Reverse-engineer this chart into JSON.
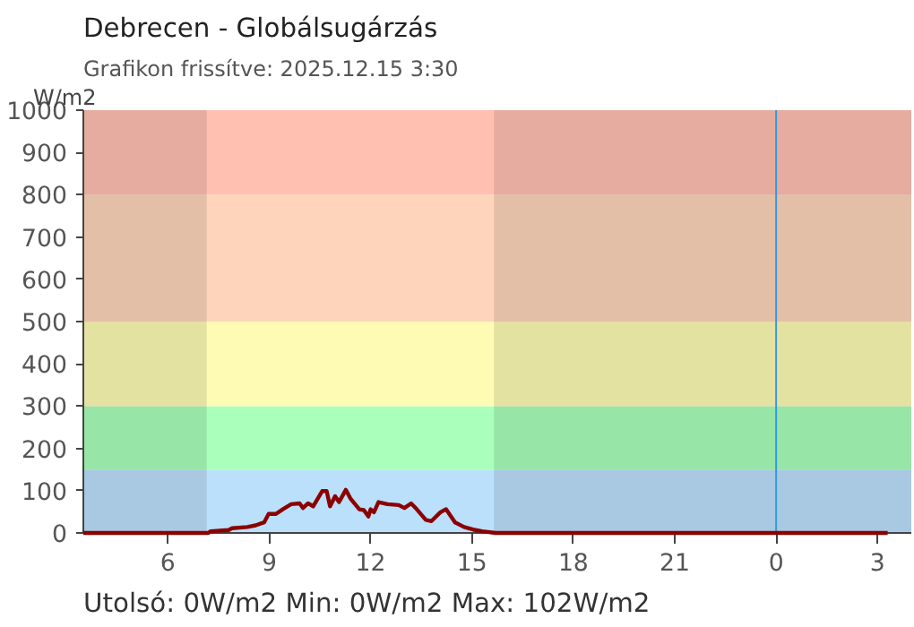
{
  "chart_data": {
    "type": "line",
    "title": "Debrecen - Globálsugárzás",
    "subtitle": "Grafikon frissítve: 2025.12.15 3:30",
    "ylabel": "W/m2",
    "annotations": [
      "Utolsó: 0W/m2  Min: 0W/m2  Max: 102W/m2"
    ],
    "xlim": [
      "2025-12-14T03:30",
      "2025-12-15T04:00"
    ],
    "ylim": [
      0,
      1000
    ],
    "xticks": [
      {
        "value": "2025-12-14T06:00",
        "label": "6"
      },
      {
        "value": "2025-12-14T09:00",
        "label": "9"
      },
      {
        "value": "2025-12-14T12:00",
        "label": "12"
      },
      {
        "value": "2025-12-14T15:00",
        "label": "15"
      },
      {
        "value": "2025-12-14T18:00",
        "label": "18"
      },
      {
        "value": "2025-12-14T21:00",
        "label": "21"
      },
      {
        "value": "2025-12-15T00:00",
        "label": "0"
      },
      {
        "value": "2025-12-15T03:00",
        "label": "3"
      }
    ],
    "yticks": [
      0,
      100,
      200,
      300,
      400,
      500,
      600,
      700,
      800,
      900,
      1000
    ],
    "grid": false,
    "series": [
      {
        "color": "#8b0000",
        "x": [
          "2025-12-14T03:30",
          "2025-12-14T07:12",
          "2025-12-14T07:16",
          "2025-12-14T07:48",
          "2025-12-14T07:54",
          "2025-12-14T08:21",
          "2025-12-14T08:36",
          "2025-12-14T08:51",
          "2025-12-14T08:59",
          "2025-12-14T09:12",
          "2025-12-14T09:24",
          "2025-12-14T09:39",
          "2025-12-14T09:54",
          "2025-12-14T10:00",
          "2025-12-14T10:09",
          "2025-12-14T10:18",
          "2025-12-14T10:34",
          "2025-12-14T10:42",
          "2025-12-14T10:48",
          "2025-12-14T10:57",
          "2025-12-14T11:04",
          "2025-12-14T11:09",
          "2025-12-14T11:16",
          "2025-12-14T11:24",
          "2025-12-14T11:40",
          "2025-12-14T11:48",
          "2025-12-14T11:56",
          "2025-12-14T12:00",
          "2025-12-14T12:06",
          "2025-12-14T12:14",
          "2025-12-14T12:30",
          "2025-12-14T12:50",
          "2025-12-14T13:00",
          "2025-12-14T13:12",
          "2025-12-14T13:22",
          "2025-12-14T13:38",
          "2025-12-14T13:48",
          "2025-12-14T14:04",
          "2025-12-14T14:14",
          "2025-12-14T14:30",
          "2025-12-14T14:46",
          "2025-12-14T15:02",
          "2025-12-14T15:18",
          "2025-12-14T15:42",
          "2025-12-15T03:18"
        ],
        "values": [
          0,
          0,
          4,
          7,
          11,
          14,
          18,
          25,
          45,
          45,
          56,
          68,
          70,
          59,
          70,
          63,
          99,
          99,
          63,
          87,
          73,
          85,
          102,
          82,
          56,
          54,
          39,
          56,
          49,
          73,
          68,
          66,
          59,
          70,
          56,
          31,
          28,
          49,
          56,
          25,
          14,
          8,
          4,
          0,
          0
        ]
      }
    ],
    "bands": [
      {
        "axis": "y",
        "from": 0,
        "to": 150,
        "color": "#bbe0fb"
      },
      {
        "axis": "y",
        "from": 150,
        "to": 300,
        "color": "#aaffbb"
      },
      {
        "axis": "y",
        "from": 300,
        "to": 500,
        "color": "#fefcb4"
      },
      {
        "axis": "y",
        "from": 500,
        "to": 800,
        "color": "#fed5bb"
      },
      {
        "axis": "y",
        "from": 800,
        "to": 1000,
        "color": "#ffc0b2"
      },
      {
        "axis": "x",
        "from": "2025-12-14T03:30",
        "to": "2025-12-14T07:09",
        "color": "#000000"
      },
      {
        "axis": "x",
        "from": "2025-12-14T15:39",
        "to": "2025-12-15T04:00",
        "color": "#000000"
      }
    ],
    "ref_lines": [
      {
        "axis": "x",
        "value": "2025-12-15T00:00",
        "color": "#3399dd"
      }
    ]
  }
}
